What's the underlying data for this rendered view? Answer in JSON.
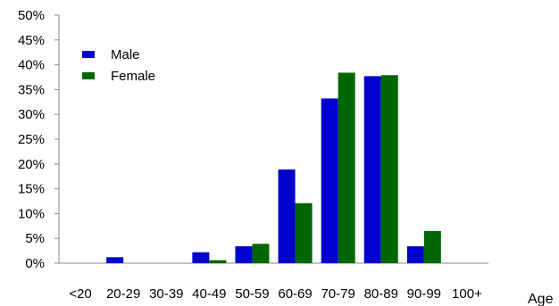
{
  "chart_data": {
    "type": "bar",
    "title": "",
    "xlabel": "Age",
    "ylabel": "",
    "categories": [
      "<20",
      "20-29",
      "30-39",
      "40-49",
      "50-59",
      "60-69",
      "70-79",
      "80-89",
      "90-99",
      "100+"
    ],
    "series": [
      {
        "name": "Male",
        "color": "#0000CC",
        "values": [
          0,
          1.2,
          0,
          2.2,
          3.4,
          18.9,
          33.2,
          37.7,
          3.4,
          0
        ]
      },
      {
        "name": "Female",
        "color": "#006600",
        "values": [
          0,
          0,
          0,
          0.6,
          3.9,
          12.1,
          38.4,
          37.9,
          6.5,
          0
        ]
      }
    ],
    "ylim": [
      0,
      50
    ],
    "yticks": [
      "0%",
      "5%",
      "10%",
      "15%",
      "20%",
      "25%",
      "30%",
      "35%",
      "40%",
      "45%",
      "50%"
    ],
    "grid": false,
    "legend_position": "top-left"
  }
}
